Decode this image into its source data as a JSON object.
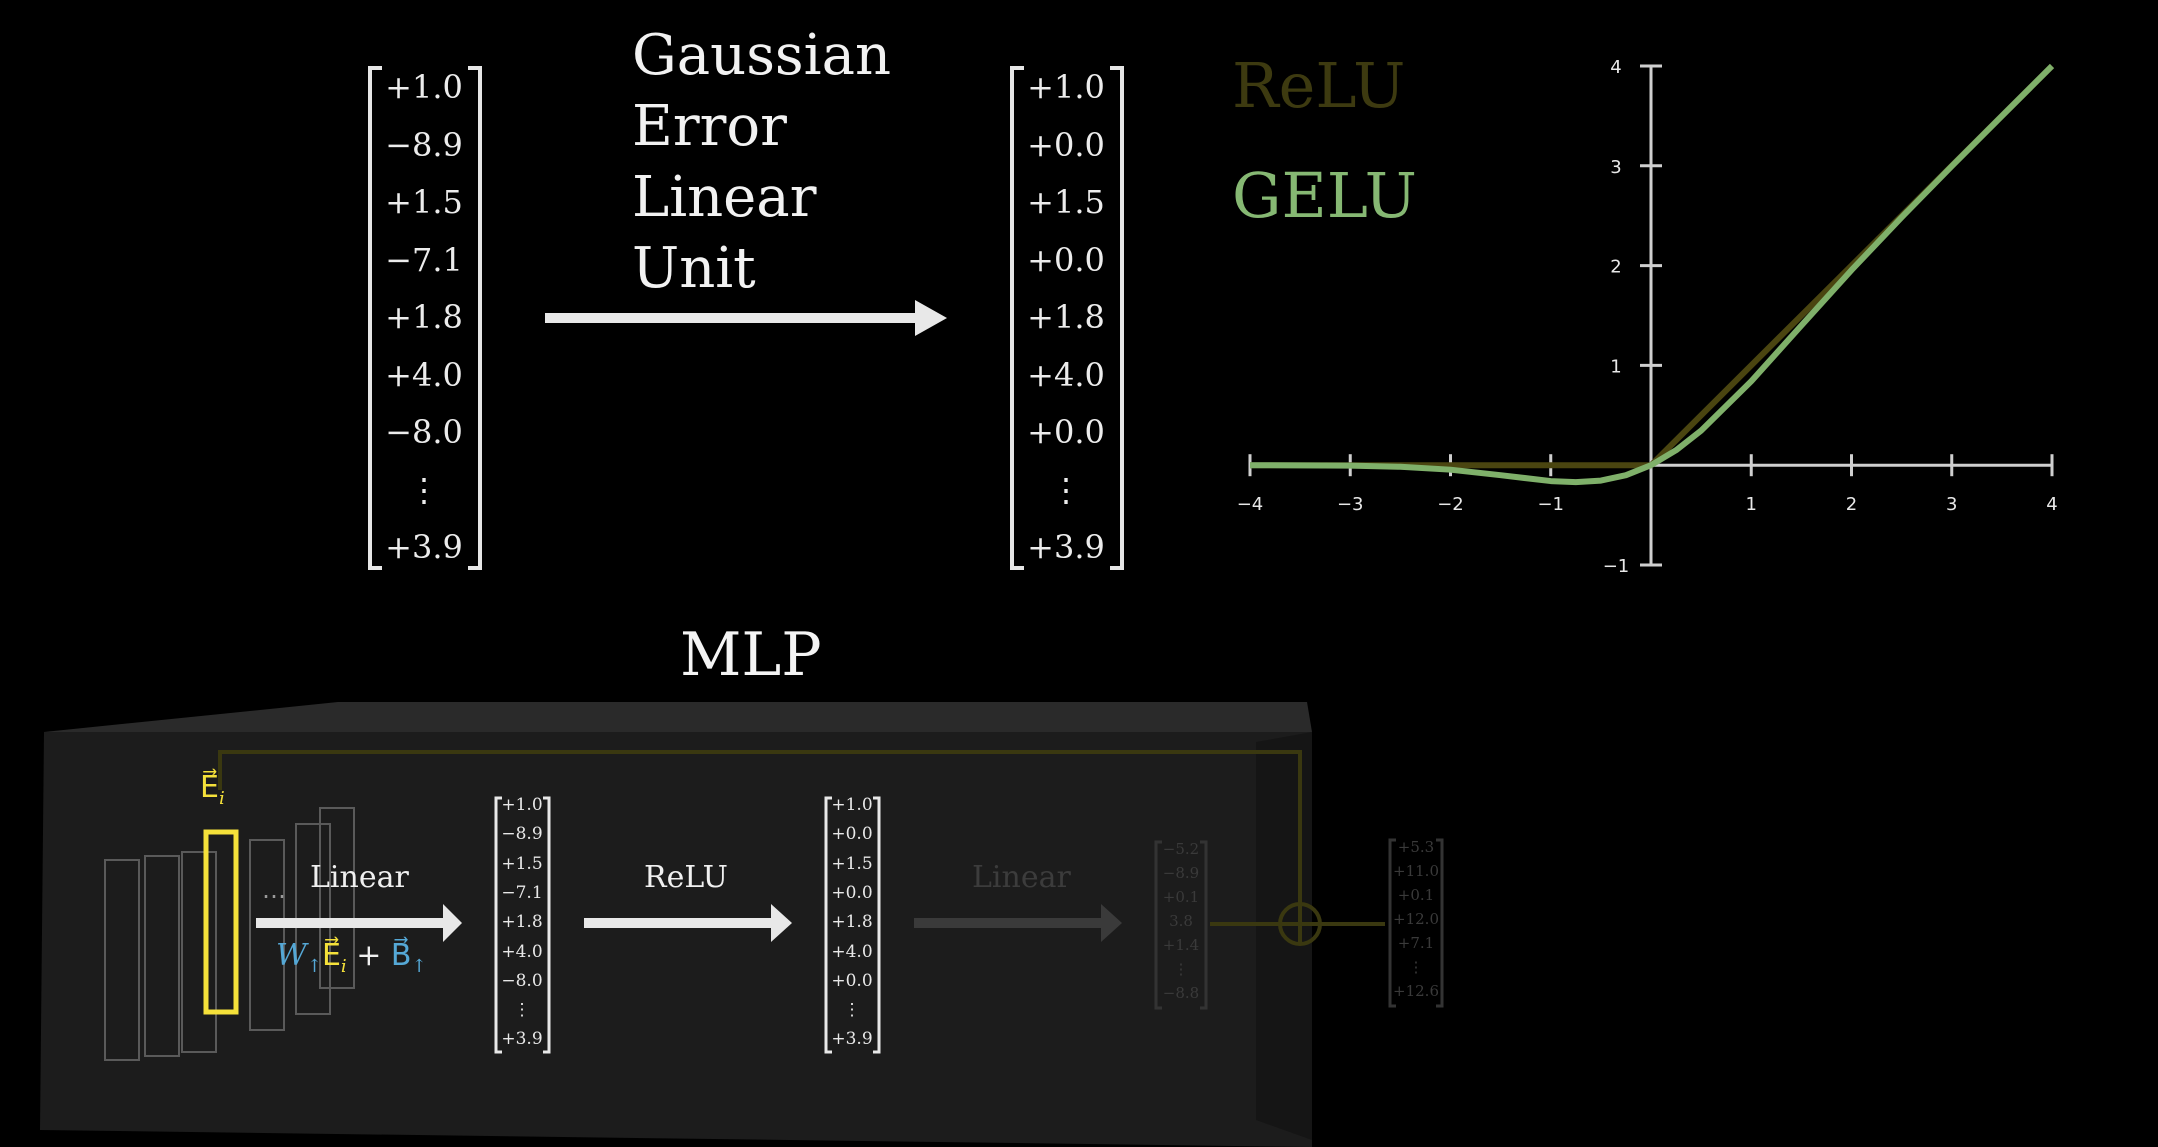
{
  "title_words": [
    "Gaussian",
    "Error",
    "Linear",
    "Unit"
  ],
  "input_vector": [
    "+1.0",
    "−8.9",
    "+1.5",
    "−7.1",
    "+1.8",
    "+4.0",
    "−8.0",
    "⋮",
    "+3.9"
  ],
  "output_vector": [
    "+1.0",
    "+0.0",
    "+1.5",
    "+0.0",
    "+1.8",
    "+4.0",
    "+0.0",
    "⋮",
    "+3.9"
  ],
  "legend": {
    "relu": "ReLU",
    "gelu": "GELU"
  },
  "chart_data": {
    "type": "line",
    "x_ticks": [
      "−4",
      "−3",
      "−2",
      "−1",
      "1",
      "2",
      "3",
      "4"
    ],
    "y_ticks": [
      "4",
      "3",
      "2",
      "1",
      "−1"
    ],
    "xlim": [
      -4,
      4
    ],
    "ylim": [
      -1,
      4
    ],
    "series": [
      {
        "name": "ReLU",
        "color": "#4a4510",
        "x": [
          -4,
          -3,
          -2,
          -1,
          0,
          1,
          2,
          3,
          4
        ],
        "y": [
          0,
          0,
          0,
          0,
          0,
          1,
          2,
          3,
          4
        ]
      },
      {
        "name": "GELU",
        "color": "#7fb06a",
        "x": [
          -4,
          -3,
          -2.5,
          -2,
          -1.5,
          -1,
          -0.75,
          -0.5,
          -0.25,
          0,
          0.25,
          0.5,
          1,
          1.5,
          2,
          2.5,
          3,
          3.5,
          4
        ],
        "y": [
          0,
          -0.004,
          -0.016,
          -0.045,
          -0.1,
          -0.159,
          -0.17,
          -0.154,
          -0.1,
          0,
          0.15,
          0.346,
          0.841,
          1.4,
          1.955,
          2.484,
          2.996,
          3.499,
          4
        ]
      }
    ]
  },
  "mlp": {
    "title": "MLP",
    "embedding_label": "E⃗",
    "embedding_sub": "i",
    "linear_label": "Linear",
    "formula": {
      "w": "W",
      "e": "E⃗",
      "sub_i": "i",
      "plus": "+",
      "b": "B⃗",
      "up": "↑"
    },
    "relu_label": "ReLU",
    "ghost_linear_label": "Linear",
    "hidden_vector": [
      "+1.0",
      "−8.9",
      "+1.5",
      "−7.1",
      "+1.8",
      "+4.0",
      "−8.0",
      "⋮",
      "+3.9"
    ],
    "relu_vector": [
      "+1.0",
      "+0.0",
      "+1.5",
      "+0.0",
      "+1.8",
      "+4.0",
      "+0.0",
      "⋮",
      "+3.9"
    ],
    "faded_vector": [
      "−5.2",
      "−8.9",
      "+0.1",
      "3.8",
      "+1.4",
      "⋮",
      "−8.8"
    ],
    "sum_vector": [
      "+5.3",
      "+11.0",
      "+0.1",
      "+12.0",
      "+7.1",
      "⋮",
      "+12.6"
    ],
    "ellipsis": "⋯"
  }
}
